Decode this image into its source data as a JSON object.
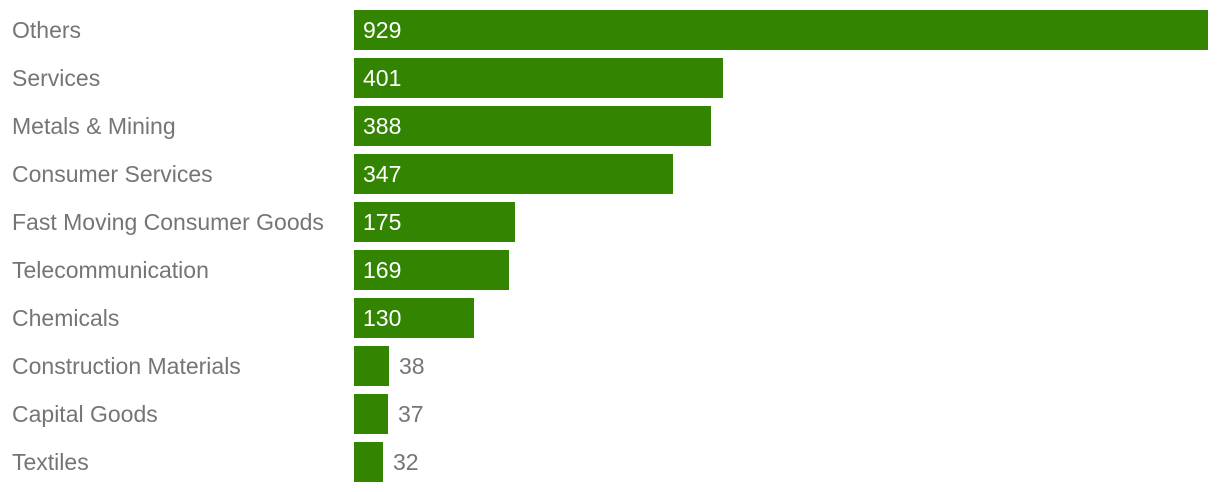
{
  "chart_data": {
    "type": "bar",
    "orientation": "horizontal",
    "categories": [
      "Others",
      "Services",
      "Metals & Mining",
      "Consumer Services",
      "Fast Moving Consumer Goods",
      "Telecommunication",
      "Chemicals",
      "Construction Materials",
      "Capital Goods",
      "Textiles"
    ],
    "values": [
      929,
      401,
      388,
      347,
      175,
      169,
      130,
      38,
      37,
      32
    ],
    "xlim": [
      0,
      929
    ],
    "grid": false,
    "legend": "none",
    "colors": {
      "bar": "#338400",
      "label_text": "#757575",
      "value_inside": "#ffffff",
      "value_outside": "#757575"
    }
  }
}
